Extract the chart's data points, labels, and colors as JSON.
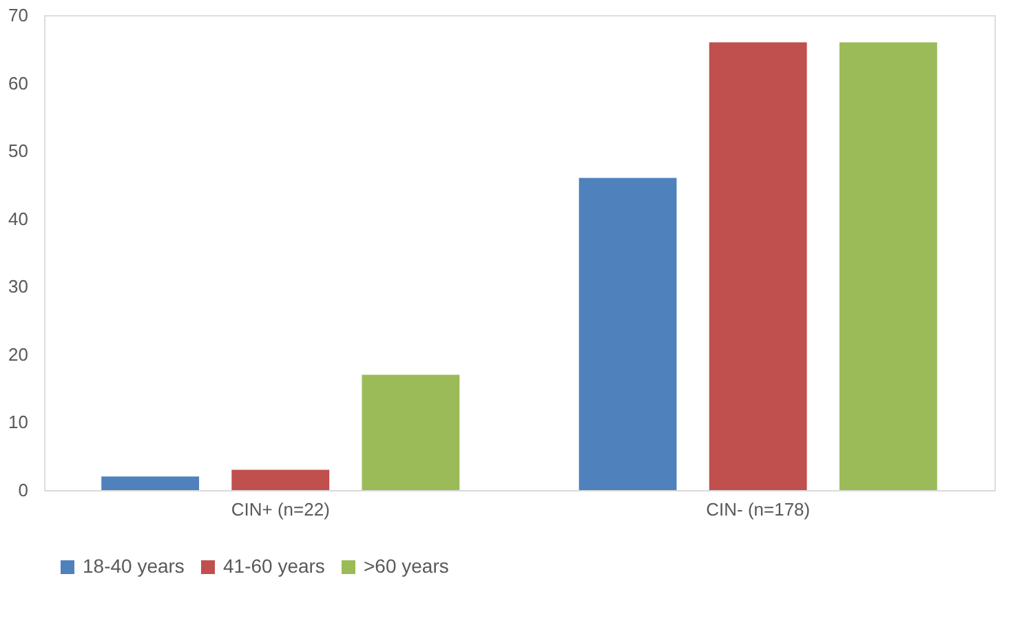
{
  "chart_data": {
    "type": "bar",
    "categories": [
      "CIN+ (n=22)",
      "CIN- (n=178)"
    ],
    "series": [
      {
        "name": "18-40 years",
        "color": "#4f81bd",
        "values": [
          2,
          46
        ]
      },
      {
        "name": "41-60 years",
        "color": "#c0504d",
        "values": [
          3,
          66
        ]
      },
      {
        "name": ">60 years",
        "color": "#9bbb59",
        "values": [
          17,
          66
        ]
      }
    ],
    "ylim": [
      0,
      70
    ],
    "yticks": [
      0,
      10,
      20,
      30,
      40,
      50,
      60,
      70
    ],
    "grid": false,
    "legend": "bottom"
  }
}
